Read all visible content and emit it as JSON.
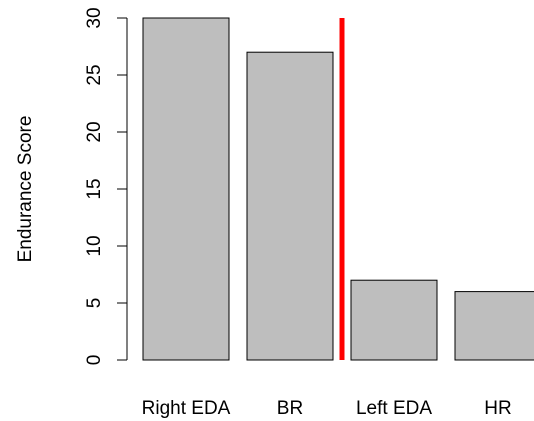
{
  "chart_data": {
    "type": "bar",
    "categories": [
      "Right EDA",
      "BR",
      "Left EDA",
      "HR"
    ],
    "values": [
      30,
      27,
      7,
      6
    ],
    "title": "",
    "xlabel": "",
    "ylabel": "Endurance Score",
    "ylim": [
      0,
      30
    ],
    "yticks": [
      0,
      5,
      10,
      15,
      20,
      25,
      30
    ],
    "grid": false,
    "bar_color": "#bebebe",
    "bar_border_color": "#000000",
    "divider": {
      "after_category": "BR",
      "color": "#ff0000"
    }
  }
}
